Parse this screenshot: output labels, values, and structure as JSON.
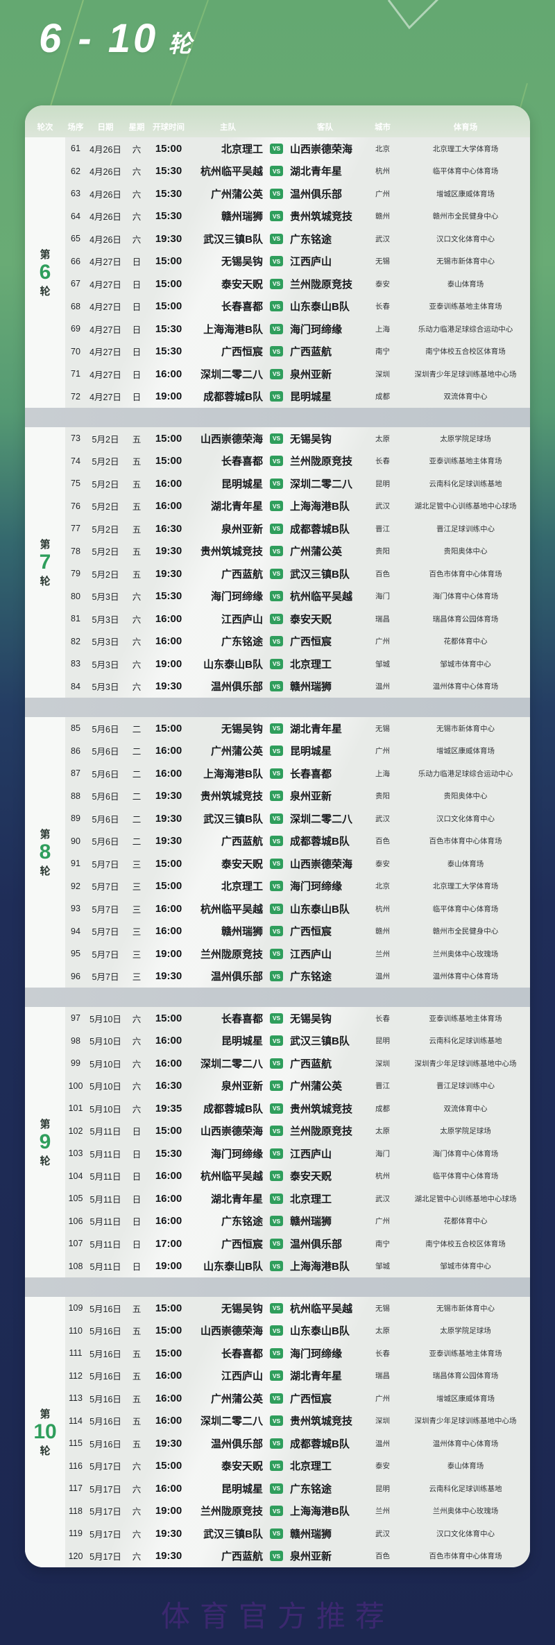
{
  "page": {
    "title_main": "6 - 10",
    "title_suffix": "轮",
    "watermark": "体育官方推荐"
  },
  "colors": {
    "bg_top": "#64a871",
    "bg_bottom": "#1c2750",
    "accent_green": "#2f9e5c",
    "panel_grey": "#e8ebe8",
    "separator_grey": "#c4cacf",
    "watermark": "#5b2a8f"
  },
  "table": {
    "headers": {
      "round": "轮次",
      "match": "场序",
      "date": "日期",
      "weekday": "星期",
      "time": "开球时间",
      "home": "主队",
      "away": "客队",
      "city": "城市",
      "stadium": "体育场"
    },
    "vs_label": "VS",
    "rounds": [
      {
        "label_prefix": "第",
        "number": "6",
        "label_suffix": "轮",
        "matches": [
          {
            "no": "61",
            "date": "4月26日",
            "weekday": "六",
            "time": "15:00",
            "home": "北京理工",
            "away": "山西崇德荣海",
            "city": "北京",
            "stadium": "北京理工大学体育场"
          },
          {
            "no": "62",
            "date": "4月26日",
            "weekday": "六",
            "time": "15:30",
            "home": "杭州临平吴越",
            "away": "湖北青年星",
            "city": "杭州",
            "stadium": "临平体育中心体育场"
          },
          {
            "no": "63",
            "date": "4月26日",
            "weekday": "六",
            "time": "15:30",
            "home": "广州蒲公英",
            "away": "温州俱乐部",
            "city": "广州",
            "stadium": "增城区康威体育场"
          },
          {
            "no": "64",
            "date": "4月26日",
            "weekday": "六",
            "time": "15:30",
            "home": "赣州瑞狮",
            "away": "贵州筑城竞技",
            "city": "赣州",
            "stadium": "赣州市全民健身中心"
          },
          {
            "no": "65",
            "date": "4月26日",
            "weekday": "六",
            "time": "19:30",
            "home": "武汉三镇B队",
            "away": "广东铭途",
            "city": "武汉",
            "stadium": "汉口文化体育中心"
          },
          {
            "no": "66",
            "date": "4月27日",
            "weekday": "日",
            "time": "15:00",
            "home": "无锡吴钩",
            "away": "江西庐山",
            "city": "无锡",
            "stadium": "无锡市新体育中心"
          },
          {
            "no": "67",
            "date": "4月27日",
            "weekday": "日",
            "time": "15:00",
            "home": "泰安天贶",
            "away": "兰州陇原竞技",
            "city": "泰安",
            "stadium": "泰山体育场"
          },
          {
            "no": "68",
            "date": "4月27日",
            "weekday": "日",
            "time": "15:00",
            "home": "长春喜都",
            "away": "山东泰山B队",
            "city": "长春",
            "stadium": "亚泰训练基地主体育场"
          },
          {
            "no": "69",
            "date": "4月27日",
            "weekday": "日",
            "time": "15:30",
            "home": "上海海港B队",
            "away": "海门珂缔缘",
            "city": "上海",
            "stadium": "乐动力临港足球综合运动中心"
          },
          {
            "no": "70",
            "date": "4月27日",
            "weekday": "日",
            "time": "15:30",
            "home": "广西恒宸",
            "away": "广西蓝航",
            "city": "南宁",
            "stadium": "南宁体校五合校区体育场"
          },
          {
            "no": "71",
            "date": "4月27日",
            "weekday": "日",
            "time": "16:00",
            "home": "深圳二零二八",
            "away": "泉州亚新",
            "city": "深圳",
            "stadium": "深圳青少年足球训练基地中心场"
          },
          {
            "no": "72",
            "date": "4月27日",
            "weekday": "日",
            "time": "19:00",
            "home": "成都蓉城B队",
            "away": "昆明城星",
            "city": "成都",
            "stadium": "双流体育中心"
          }
        ]
      },
      {
        "label_prefix": "第",
        "number": "7",
        "label_suffix": "轮",
        "matches": [
          {
            "no": "73",
            "date": "5月2日",
            "weekday": "五",
            "time": "15:00",
            "home": "山西崇德荣海",
            "away": "无锡吴钩",
            "city": "太原",
            "stadium": "太原学院足球场"
          },
          {
            "no": "74",
            "date": "5月2日",
            "weekday": "五",
            "time": "15:00",
            "home": "长春喜都",
            "away": "兰州陇原竞技",
            "city": "长春",
            "stadium": "亚泰训练基地主体育场"
          },
          {
            "no": "75",
            "date": "5月2日",
            "weekday": "五",
            "time": "16:00",
            "home": "昆明城星",
            "away": "深圳二零二八",
            "city": "昆明",
            "stadium": "云南科化足球训练基地"
          },
          {
            "no": "76",
            "date": "5月2日",
            "weekday": "五",
            "time": "16:00",
            "home": "湖北青年星",
            "away": "上海海港B队",
            "city": "武汉",
            "stadium": "湖北足管中心训练基地中心球场"
          },
          {
            "no": "77",
            "date": "5月2日",
            "weekday": "五",
            "time": "16:30",
            "home": "泉州亚新",
            "away": "成都蓉城B队",
            "city": "晋江",
            "stadium": "晋江足球训练中心"
          },
          {
            "no": "78",
            "date": "5月2日",
            "weekday": "五",
            "time": "19:30",
            "home": "贵州筑城竞技",
            "away": "广州蒲公英",
            "city": "贵阳",
            "stadium": "贵阳奥体中心"
          },
          {
            "no": "79",
            "date": "5月2日",
            "weekday": "五",
            "time": "19:30",
            "home": "广西蓝航",
            "away": "武汉三镇B队",
            "city": "百色",
            "stadium": "百色市体育中心体育场"
          },
          {
            "no": "80",
            "date": "5月3日",
            "weekday": "六",
            "time": "15:30",
            "home": "海门珂缔缘",
            "away": "杭州临平吴越",
            "city": "海门",
            "stadium": "海门体育中心体育场"
          },
          {
            "no": "81",
            "date": "5月3日",
            "weekday": "六",
            "time": "16:00",
            "home": "江西庐山",
            "away": "泰安天贶",
            "city": "瑞昌",
            "stadium": "瑞昌体育公园体育场"
          },
          {
            "no": "82",
            "date": "5月3日",
            "weekday": "六",
            "time": "16:00",
            "home": "广东铭途",
            "away": "广西恒宸",
            "city": "广州",
            "stadium": "花都体育中心"
          },
          {
            "no": "83",
            "date": "5月3日",
            "weekday": "六",
            "time": "19:00",
            "home": "山东泰山B队",
            "away": "北京理工",
            "city": "邹城",
            "stadium": "邹城市体育中心"
          },
          {
            "no": "84",
            "date": "5月3日",
            "weekday": "六",
            "time": "19:30",
            "home": "温州俱乐部",
            "away": "赣州瑞狮",
            "city": "温州",
            "stadium": "温州体育中心体育场"
          }
        ]
      },
      {
        "label_prefix": "第",
        "number": "8",
        "label_suffix": "轮",
        "matches": [
          {
            "no": "85",
            "date": "5月6日",
            "weekday": "二",
            "time": "15:00",
            "home": "无锡吴钩",
            "away": "湖北青年星",
            "city": "无锡",
            "stadium": "无锡市新体育中心"
          },
          {
            "no": "86",
            "date": "5月6日",
            "weekday": "二",
            "time": "16:00",
            "home": "广州蒲公英",
            "away": "昆明城星",
            "city": "广州",
            "stadium": "增城区康威体育场"
          },
          {
            "no": "87",
            "date": "5月6日",
            "weekday": "二",
            "time": "16:00",
            "home": "上海海港B队",
            "away": "长春喜都",
            "city": "上海",
            "stadium": "乐动力临港足球综合运动中心"
          },
          {
            "no": "88",
            "date": "5月6日",
            "weekday": "二",
            "time": "19:30",
            "home": "贵州筑城竞技",
            "away": "泉州亚新",
            "city": "贵阳",
            "stadium": "贵阳奥体中心"
          },
          {
            "no": "89",
            "date": "5月6日",
            "weekday": "二",
            "time": "19:30",
            "home": "武汉三镇B队",
            "away": "深圳二零二八",
            "city": "武汉",
            "stadium": "汉口文化体育中心"
          },
          {
            "no": "90",
            "date": "5月6日",
            "weekday": "二",
            "time": "19:30",
            "home": "广西蓝航",
            "away": "成都蓉城B队",
            "city": "百色",
            "stadium": "百色市体育中心体育场"
          },
          {
            "no": "91",
            "date": "5月7日",
            "weekday": "三",
            "time": "15:00",
            "home": "泰安天贶",
            "away": "山西崇德荣海",
            "city": "泰安",
            "stadium": "泰山体育场"
          },
          {
            "no": "92",
            "date": "5月7日",
            "weekday": "三",
            "time": "15:00",
            "home": "北京理工",
            "away": "海门珂缔缘",
            "city": "北京",
            "stadium": "北京理工大学体育场"
          },
          {
            "no": "93",
            "date": "5月7日",
            "weekday": "三",
            "time": "16:00",
            "home": "杭州临平吴越",
            "away": "山东泰山B队",
            "city": "杭州",
            "stadium": "临平体育中心体育场"
          },
          {
            "no": "94",
            "date": "5月7日",
            "weekday": "三",
            "time": "16:00",
            "home": "赣州瑞狮",
            "away": "广西恒宸",
            "city": "赣州",
            "stadium": "赣州市全民健身中心"
          },
          {
            "no": "95",
            "date": "5月7日",
            "weekday": "三",
            "time": "19:00",
            "home": "兰州陇原竞技",
            "away": "江西庐山",
            "city": "兰州",
            "stadium": "兰州奥体中心玫瑰场"
          },
          {
            "no": "96",
            "date": "5月7日",
            "weekday": "三",
            "time": "19:30",
            "home": "温州俱乐部",
            "away": "广东铭途",
            "city": "温州",
            "stadium": "温州体育中心体育场"
          }
        ]
      },
      {
        "label_prefix": "第",
        "number": "9",
        "label_suffix": "轮",
        "matches": [
          {
            "no": "97",
            "date": "5月10日",
            "weekday": "六",
            "time": "15:00",
            "home": "长春喜都",
            "away": "无锡吴钩",
            "city": "长春",
            "stadium": "亚泰训练基地主体育场"
          },
          {
            "no": "98",
            "date": "5月10日",
            "weekday": "六",
            "time": "16:00",
            "home": "昆明城星",
            "away": "武汉三镇B队",
            "city": "昆明",
            "stadium": "云南科化足球训练基地"
          },
          {
            "no": "99",
            "date": "5月10日",
            "weekday": "六",
            "time": "16:00",
            "home": "深圳二零二八",
            "away": "广西蓝航",
            "city": "深圳",
            "stadium": "深圳青少年足球训练基地中心场"
          },
          {
            "no": "100",
            "date": "5月10日",
            "weekday": "六",
            "time": "16:30",
            "home": "泉州亚新",
            "away": "广州蒲公英",
            "city": "晋江",
            "stadium": "晋江足球训练中心"
          },
          {
            "no": "101",
            "date": "5月10日",
            "weekday": "六",
            "time": "19:35",
            "home": "成都蓉城B队",
            "away": "贵州筑城竞技",
            "city": "成都",
            "stadium": "双流体育中心"
          },
          {
            "no": "102",
            "date": "5月11日",
            "weekday": "日",
            "time": "15:00",
            "home": "山西崇德荣海",
            "away": "兰州陇原竞技",
            "city": "太原",
            "stadium": "太原学院足球场"
          },
          {
            "no": "103",
            "date": "5月11日",
            "weekday": "日",
            "time": "15:30",
            "home": "海门珂缔缘",
            "away": "江西庐山",
            "city": "海门",
            "stadium": "海门体育中心体育场"
          },
          {
            "no": "104",
            "date": "5月11日",
            "weekday": "日",
            "time": "16:00",
            "home": "杭州临平吴越",
            "away": "泰安天贶",
            "city": "杭州",
            "stadium": "临平体育中心体育场"
          },
          {
            "no": "105",
            "date": "5月11日",
            "weekday": "日",
            "time": "16:00",
            "home": "湖北青年星",
            "away": "北京理工",
            "city": "武汉",
            "stadium": "湖北足管中心训练基地中心球场"
          },
          {
            "no": "106",
            "date": "5月11日",
            "weekday": "日",
            "time": "16:00",
            "home": "广东铭途",
            "away": "赣州瑞狮",
            "city": "广州",
            "stadium": "花都体育中心"
          },
          {
            "no": "107",
            "date": "5月11日",
            "weekday": "日",
            "time": "17:00",
            "home": "广西恒宸",
            "away": "温州俱乐部",
            "city": "南宁",
            "stadium": "南宁体校五合校区体育场"
          },
          {
            "no": "108",
            "date": "5月11日",
            "weekday": "日",
            "time": "19:00",
            "home": "山东泰山B队",
            "away": "上海海港B队",
            "city": "邹城",
            "stadium": "邹城市体育中心"
          }
        ]
      },
      {
        "label_prefix": "第",
        "number": "10",
        "label_suffix": "轮",
        "matches": [
          {
            "no": "109",
            "date": "5月16日",
            "weekday": "五",
            "time": "15:00",
            "home": "无锡吴钩",
            "away": "杭州临平吴越",
            "city": "无锡",
            "stadium": "无锡市新体育中心"
          },
          {
            "no": "110",
            "date": "5月16日",
            "weekday": "五",
            "time": "15:00",
            "home": "山西崇德荣海",
            "away": "山东泰山B队",
            "city": "太原",
            "stadium": "太原学院足球场"
          },
          {
            "no": "111",
            "date": "5月16日",
            "weekday": "五",
            "time": "15:00",
            "home": "长春喜都",
            "away": "海门珂缔缘",
            "city": "长春",
            "stadium": "亚泰训练基地主体育场"
          },
          {
            "no": "112",
            "date": "5月16日",
            "weekday": "五",
            "time": "16:00",
            "home": "江西庐山",
            "away": "湖北青年星",
            "city": "瑞昌",
            "stadium": "瑞昌体育公园体育场"
          },
          {
            "no": "113",
            "date": "5月16日",
            "weekday": "五",
            "time": "16:00",
            "home": "广州蒲公英",
            "away": "广西恒宸",
            "city": "广州",
            "stadium": "增城区康威体育场"
          },
          {
            "no": "114",
            "date": "5月16日",
            "weekday": "五",
            "time": "16:00",
            "home": "深圳二零二八",
            "away": "贵州筑城竞技",
            "city": "深圳",
            "stadium": "深圳青少年足球训练基地中心场"
          },
          {
            "no": "115",
            "date": "5月16日",
            "weekday": "五",
            "time": "19:30",
            "home": "温州俱乐部",
            "away": "成都蓉城B队",
            "city": "温州",
            "stadium": "温州体育中心体育场"
          },
          {
            "no": "116",
            "date": "5月17日",
            "weekday": "六",
            "time": "15:00",
            "home": "泰安天贶",
            "away": "北京理工",
            "city": "泰安",
            "stadium": "泰山体育场"
          },
          {
            "no": "117",
            "date": "5月17日",
            "weekday": "六",
            "time": "16:00",
            "home": "昆明城星",
            "away": "广东铭途",
            "city": "昆明",
            "stadium": "云南科化足球训练基地"
          },
          {
            "no": "118",
            "date": "5月17日",
            "weekday": "六",
            "time": "19:00",
            "home": "兰州陇原竞技",
            "away": "上海海港B队",
            "city": "兰州",
            "stadium": "兰州奥体中心玫瑰场"
          },
          {
            "no": "119",
            "date": "5月17日",
            "weekday": "六",
            "time": "19:30",
            "home": "武汉三镇B队",
            "away": "赣州瑞狮",
            "city": "武汉",
            "stadium": "汉口文化体育中心"
          },
          {
            "no": "120",
            "date": "5月17日",
            "weekday": "六",
            "time": "19:30",
            "home": "广西蓝航",
            "away": "泉州亚新",
            "city": "百色",
            "stadium": "百色市体育中心体育场"
          }
        ]
      }
    ]
  }
}
